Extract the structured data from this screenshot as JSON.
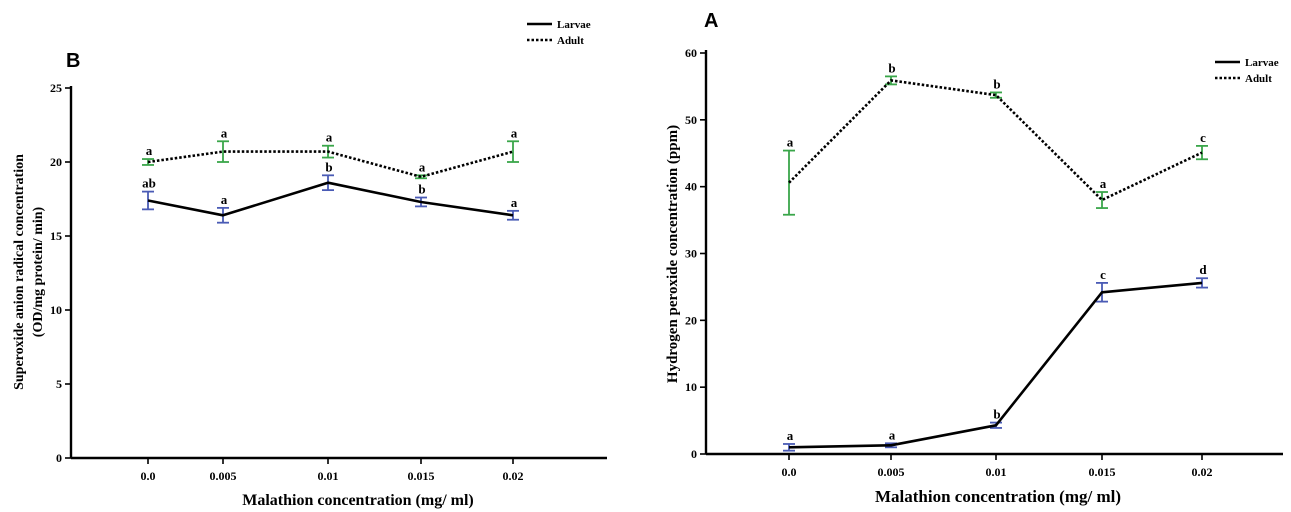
{
  "chart_data": [
    {
      "panel": "B",
      "type": "line",
      "categories": [
        "0.0",
        "0.005",
        "0.01",
        "0.015",
        "0.02"
      ],
      "xlabel": "Malathion concentration (mg/ ml)",
      "ylabel_line1": "Superoxide anion radical concentration",
      "ylabel_line2": "(OD/mg protein/ min)",
      "ylim": [
        0,
        25
      ],
      "yticks": [
        "0",
        "5",
        "10",
        "15",
        "20",
        "25"
      ],
      "legend_position": "top-right",
      "legend": [
        "Larvae",
        "Adult"
      ],
      "series": [
        {
          "name": "Larvae",
          "line_style": "solid",
          "line_color": "#000000",
          "errorbar_color": "#4a5bb5",
          "values": [
            17.4,
            16.4,
            18.6,
            17.3,
            16.4
          ],
          "errors": [
            0.6,
            0.5,
            0.5,
            0.3,
            0.3
          ],
          "letters": [
            "ab",
            "a",
            "b",
            "b",
            "a"
          ]
        },
        {
          "name": "Adult",
          "line_style": "dotted",
          "line_color": "#000000",
          "errorbar_color": "#3aa64a",
          "values": [
            20.0,
            20.7,
            20.7,
            19.0,
            20.7
          ],
          "errors": [
            0.2,
            0.7,
            0.4,
            0.1,
            0.7
          ],
          "letters": [
            "a",
            "a",
            "a",
            "a",
            "a"
          ]
        }
      ]
    },
    {
      "panel": "A",
      "type": "line",
      "categories": [
        "0.0",
        "0.005",
        "0.01",
        "0.015",
        "0.02"
      ],
      "xlabel": "Malathion concentration (mg/ ml)",
      "ylabel_line1": "Hydrogen peroxide concentration (ppm)",
      "ylabel_line2": "",
      "ylim": [
        0,
        60
      ],
      "yticks": [
        "0",
        "10",
        "20",
        "30",
        "40",
        "50",
        "60"
      ],
      "legend_position": "top-right",
      "legend": [
        "Larvae",
        "Adult"
      ],
      "series": [
        {
          "name": "Larvae",
          "line_style": "solid",
          "line_color": "#000000",
          "errorbar_color": "#4a5bb5",
          "values": [
            1.0,
            1.3,
            4.3,
            24.2,
            25.6
          ],
          "errors": [
            0.5,
            0.3,
            0.4,
            1.4,
            0.7
          ],
          "letters": [
            "a",
            "a",
            "b",
            "c",
            "d"
          ]
        },
        {
          "name": "Adult",
          "line_style": "dotted",
          "line_color": "#000000",
          "errorbar_color": "#3aa64a",
          "values": [
            40.6,
            55.9,
            53.7,
            38.0,
            45.1
          ],
          "errors": [
            4.8,
            0.6,
            0.4,
            1.2,
            1.0
          ],
          "letters": [
            "a",
            "b",
            "b",
            "a",
            "c"
          ]
        }
      ]
    }
  ]
}
